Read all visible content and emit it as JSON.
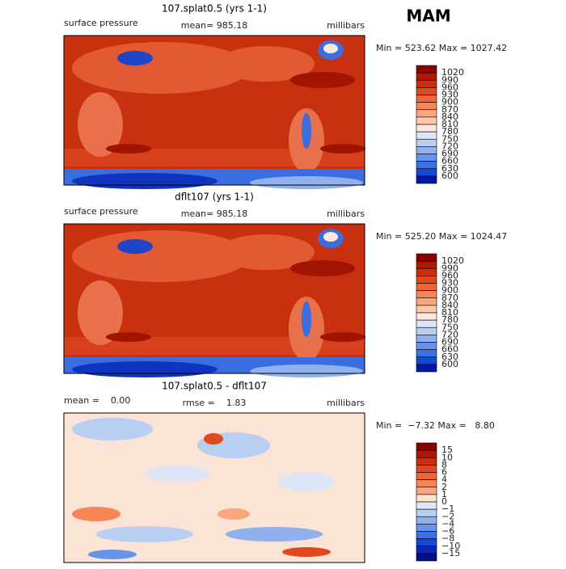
{
  "season": "MAM",
  "panels": [
    {
      "title": "107.splat0.5 (yrs 1-1)",
      "left": "surface pressure",
      "center": "mean= 985.18",
      "right": "millibars",
      "stats": "Min = 523.62 Max = 1027.42",
      "colorbar": {
        "labels": [
          "1020",
          "990",
          "960",
          "930",
          "900",
          "870",
          "840",
          "810",
          "780",
          "750",
          "720",
          "690",
          "660",
          "630",
          "600"
        ],
        "colors": [
          "#8b0000",
          "#b01800",
          "#cc2e0c",
          "#e0481e",
          "#ee6638",
          "#f68658",
          "#faa67e",
          "#fdc8ac",
          "#fde8dc",
          "#dce6f6",
          "#b8cff2",
          "#8fb2ee",
          "#6694ea",
          "#3a72e4",
          "#1448d8",
          "#0018a8"
        ]
      }
    },
    {
      "title": "dflt107 (yrs 1-1)",
      "left": "surface pressure",
      "center": "mean= 985.18",
      "right": "millibars",
      "stats": "Min = 525.20 Max = 1024.47",
      "colorbar": {
        "labels": [
          "1020",
          "990",
          "960",
          "930",
          "900",
          "870",
          "840",
          "810",
          "780",
          "750",
          "720",
          "690",
          "660",
          "630",
          "600"
        ],
        "colors": [
          "#8b0000",
          "#b01800",
          "#cc2e0c",
          "#e0481e",
          "#ee6638",
          "#f68658",
          "#faa67e",
          "#fdc8ac",
          "#fde8dc",
          "#dce6f6",
          "#b8cff2",
          "#8fb2ee",
          "#6694ea",
          "#3a72e4",
          "#1448d8",
          "#0018a8"
        ]
      }
    },
    {
      "title": "107.splat0.5 - dflt107",
      "left": "mean =    0.00",
      "center": "rmse =    1.83",
      "right": "millibars",
      "stats": "Min =  −7.32 Max =   8.80",
      "colorbar": {
        "labels": [
          "15",
          "10",
          "8",
          "6",
          "4",
          "2",
          "1",
          "0",
          "−1",
          "−2",
          "−4",
          "−6",
          "−8",
          "−10",
          "−15"
        ],
        "colors": [
          "#8b0000",
          "#b01800",
          "#cc2e0c",
          "#e0481e",
          "#ee6638",
          "#f68658",
          "#faa67e",
          "#fde2d2",
          "#dce8f8",
          "#b8cff2",
          "#8fb2ee",
          "#6694ea",
          "#3a72e4",
          "#1448d8",
          "#0a28b8",
          "#00108a"
        ]
      }
    }
  ]
}
